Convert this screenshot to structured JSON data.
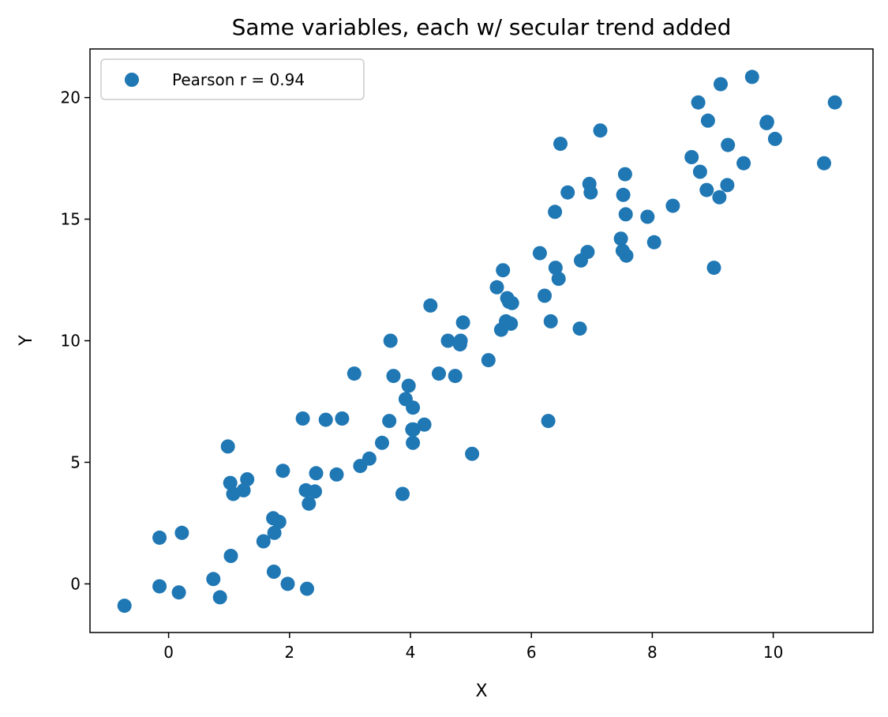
{
  "chart_data": {
    "type": "scatter",
    "title": "Same variables, each w/ secular trend added",
    "xlabel": "X",
    "ylabel": "Y",
    "xlim": [
      -1.3,
      11.65
    ],
    "ylim": [
      -2.0,
      22.0
    ],
    "xticks": [
      0,
      2,
      4,
      6,
      8,
      10
    ],
    "yticks": [
      0,
      5,
      10,
      15,
      20
    ],
    "xtick_labels": [
      "0",
      "2",
      "4",
      "6",
      "8",
      "10"
    ],
    "ytick_labels": [
      "0",
      "5",
      "10",
      "15",
      "20"
    ],
    "grid": false,
    "legend_position": "top-left",
    "marker_color": "#1f77b4",
    "series": [
      {
        "name": "Pearson r = 0.94",
        "x": [
          -0.73,
          -0.15,
          -0.15,
          0.17,
          0.22,
          0.74,
          0.85,
          0.98,
          1.02,
          1.03,
          1.07,
          1.24,
          1.3,
          1.57,
          1.73,
          1.74,
          1.75,
          1.83,
          1.89,
          1.97,
          2.22,
          2.27,
          2.29,
          2.32,
          2.42,
          2.44,
          2.6,
          2.78,
          2.87,
          3.07,
          3.17,
          3.32,
          3.53,
          3.65,
          3.67,
          3.72,
          3.87,
          3.92,
          3.97,
          4.03,
          4.04,
          4.04,
          4.05,
          4.23,
          4.33,
          4.47,
          4.62,
          4.74,
          4.82,
          4.83,
          4.87,
          5.02,
          5.29,
          5.43,
          5.5,
          5.53,
          5.58,
          5.6,
          5.63,
          5.66,
          5.68,
          6.14,
          6.22,
          6.28,
          6.32,
          6.39,
          6.4,
          6.45,
          6.48,
          6.6,
          6.8,
          6.82,
          6.93,
          6.96,
          6.98,
          7.14,
          7.48,
          7.51,
          7.52,
          7.55,
          7.56,
          7.57,
          7.92,
          8.03,
          8.34,
          8.65,
          8.76,
          8.79,
          8.9,
          8.92,
          9.02,
          9.11,
          9.13,
          9.25,
          9.24,
          9.51,
          9.65,
          9.9,
          9.89,
          10.03,
          10.84,
          11.02
        ],
        "y": [
          -0.9,
          -0.1,
          1.9,
          -0.35,
          2.1,
          0.2,
          -0.55,
          5.65,
          4.15,
          1.15,
          3.7,
          3.85,
          4.3,
          1.75,
          2.7,
          0.5,
          2.1,
          2.55,
          4.65,
          0.0,
          6.8,
          3.85,
          -0.2,
          3.3,
          3.8,
          4.55,
          6.75,
          4.5,
          6.8,
          8.65,
          4.85,
          5.15,
          5.8,
          6.7,
          10.0,
          8.55,
          3.7,
          7.6,
          8.15,
          6.35,
          7.25,
          5.8,
          6.35,
          6.55,
          11.45,
          8.65,
          10.0,
          8.55,
          9.85,
          10.0,
          10.75,
          5.35,
          9.2,
          12.2,
          10.45,
          12.9,
          10.8,
          11.75,
          11.6,
          10.7,
          11.55,
          13.6,
          11.85,
          6.7,
          10.8,
          15.3,
          13.0,
          12.55,
          18.1,
          16.1,
          10.5,
          13.3,
          13.65,
          16.45,
          16.1,
          18.65,
          14.2,
          13.7,
          16.0,
          16.85,
          15.2,
          13.5,
          15.1,
          14.05,
          15.55,
          17.55,
          19.8,
          16.95,
          16.2,
          19.05,
          13.0,
          15.9,
          20.55,
          18.05,
          16.4,
          17.3,
          20.85,
          19.0,
          18.95,
          18.3,
          17.3,
          19.8
        ]
      }
    ]
  }
}
